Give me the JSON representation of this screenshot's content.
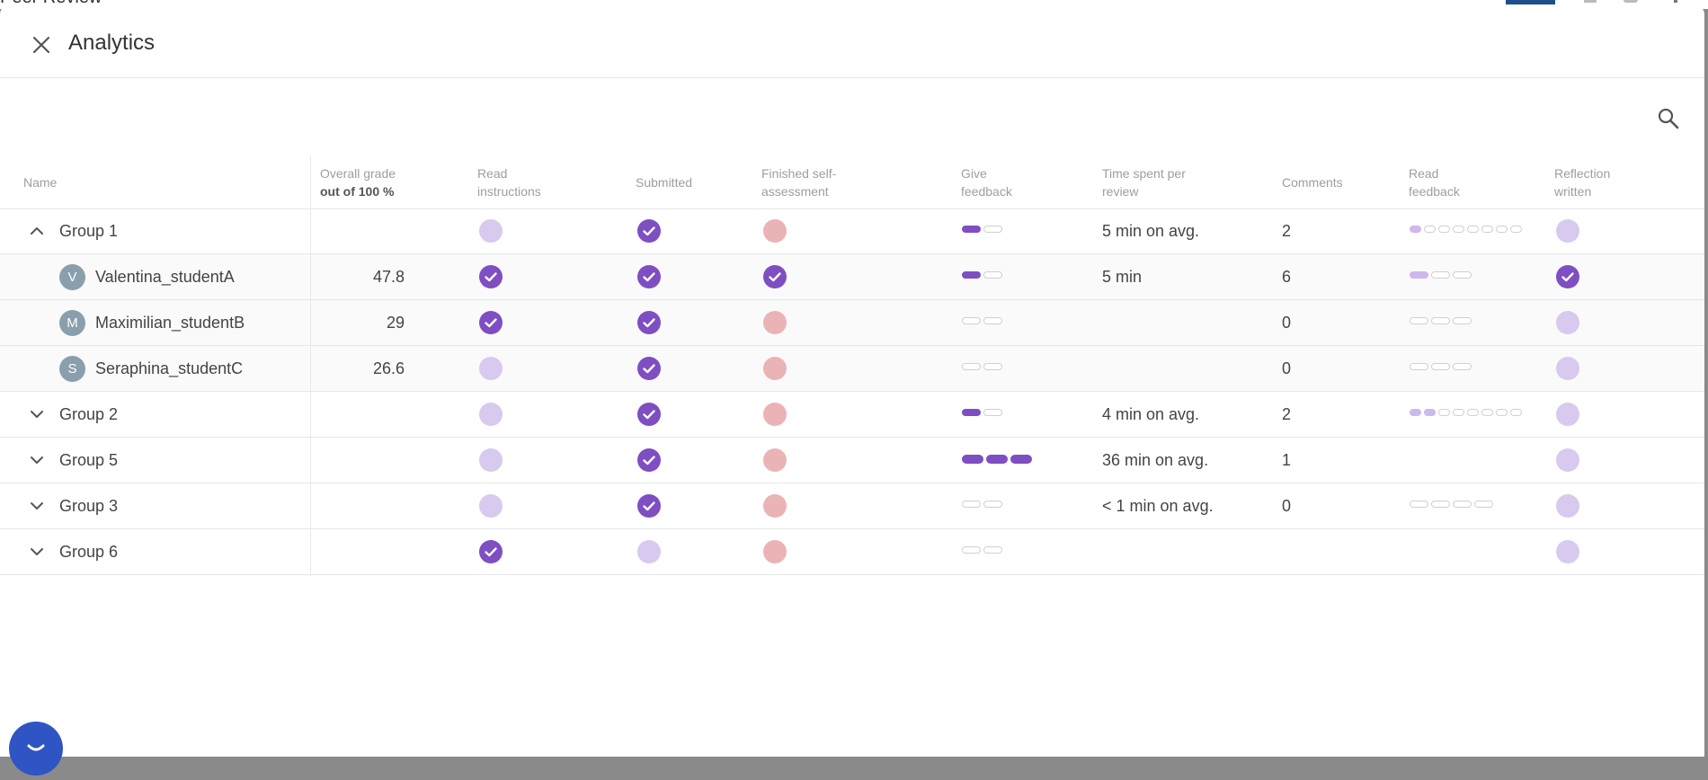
{
  "background": {
    "app_title": "Peer Review"
  },
  "modal": {
    "title": "Analytics"
  },
  "columns": {
    "name": "Name",
    "grade": "Overall grade",
    "grade_sub": "out of 100 %",
    "read_instructions": [
      "Read",
      "instructions"
    ],
    "submitted": "Submitted",
    "self_assessment": [
      "Finished self-",
      "assessment"
    ],
    "give_feedback": [
      "Give",
      "feedback"
    ],
    "time_spent": [
      "Time spent per",
      "review"
    ],
    "comments": "Comments",
    "read_feedback": [
      "Read",
      "feedback"
    ],
    "reflection": [
      "Reflection",
      "written"
    ]
  },
  "rows": [
    {
      "type": "group",
      "name": "Group 1",
      "expanded": true,
      "grade": "",
      "read_instructions": "pending",
      "submitted": "done",
      "self_assessment": "missing",
      "give_feedback": [
        "filled",
        "empty"
      ],
      "time": "5 min on avg.",
      "comments": "2",
      "read_feedback": [
        "light",
        "empty",
        "empty",
        "empty",
        "empty",
        "empty",
        "empty",
        "empty"
      ],
      "reflection": "pending"
    },
    {
      "type": "student",
      "initial": "V",
      "name": "Valentina_studentA",
      "grade": "47.8",
      "read_instructions": "done",
      "submitted": "done",
      "self_assessment": "done",
      "give_feedback": [
        "filled",
        "empty"
      ],
      "time": "5 min",
      "comments": "6",
      "read_feedback": [
        "light",
        "empty",
        "empty"
      ],
      "reflection": "done"
    },
    {
      "type": "student",
      "initial": "M",
      "name": "Maximilian_studentB",
      "grade": "29",
      "read_instructions": "done",
      "submitted": "done",
      "self_assessment": "missing",
      "give_feedback": [
        "empty",
        "empty"
      ],
      "time": "",
      "comments": "0",
      "read_feedback": [
        "empty",
        "empty",
        "empty"
      ],
      "reflection": "pending"
    },
    {
      "type": "student",
      "initial": "S",
      "name": "Seraphina_studentC",
      "grade": "26.6",
      "read_instructions": "pending",
      "submitted": "done",
      "self_assessment": "missing",
      "give_feedback": [
        "empty",
        "empty"
      ],
      "time": "",
      "comments": "0",
      "read_feedback": [
        "empty",
        "empty",
        "empty"
      ],
      "reflection": "pending"
    },
    {
      "type": "group",
      "name": "Group 2",
      "expanded": false,
      "grade": "",
      "read_instructions": "pending",
      "submitted": "done",
      "self_assessment": "missing",
      "give_feedback": [
        "filled",
        "empty"
      ],
      "time": "4 min on avg.",
      "comments": "2",
      "read_feedback": [
        "light",
        "light",
        "empty",
        "empty",
        "empty",
        "empty",
        "empty",
        "empty"
      ],
      "reflection": "pending"
    },
    {
      "type": "group",
      "name": "Group 5",
      "expanded": false,
      "grade": "",
      "read_instructions": "pending",
      "submitted": "done",
      "self_assessment": "missing",
      "give_feedback": [
        "filled",
        "filled",
        "filled"
      ],
      "time": "36 min on avg.",
      "comments": "1",
      "read_feedback": [],
      "reflection": "pending"
    },
    {
      "type": "group",
      "name": "Group 3",
      "expanded": false,
      "grade": "",
      "read_instructions": "pending",
      "submitted": "done",
      "self_assessment": "missing",
      "give_feedback": [
        "empty",
        "empty"
      ],
      "time": "< 1 min on avg.",
      "comments": "0",
      "read_feedback": [
        "empty",
        "empty",
        "empty",
        "empty"
      ],
      "reflection": "pending"
    },
    {
      "type": "group",
      "name": "Group 6",
      "expanded": false,
      "grade": "",
      "read_instructions": "done",
      "submitted": "pending",
      "self_assessment": "missing",
      "give_feedback": [
        "empty",
        "empty"
      ],
      "time": "",
      "comments": "",
      "read_feedback": [],
      "reflection": "pending"
    }
  ],
  "icons": {
    "close": "close-icon",
    "search": "search-icon",
    "chat": "chat-bubble-icon"
  },
  "colors": {
    "done": "#7e4ec2",
    "pending": "#d8c9ee",
    "missing": "#eab3b5"
  }
}
